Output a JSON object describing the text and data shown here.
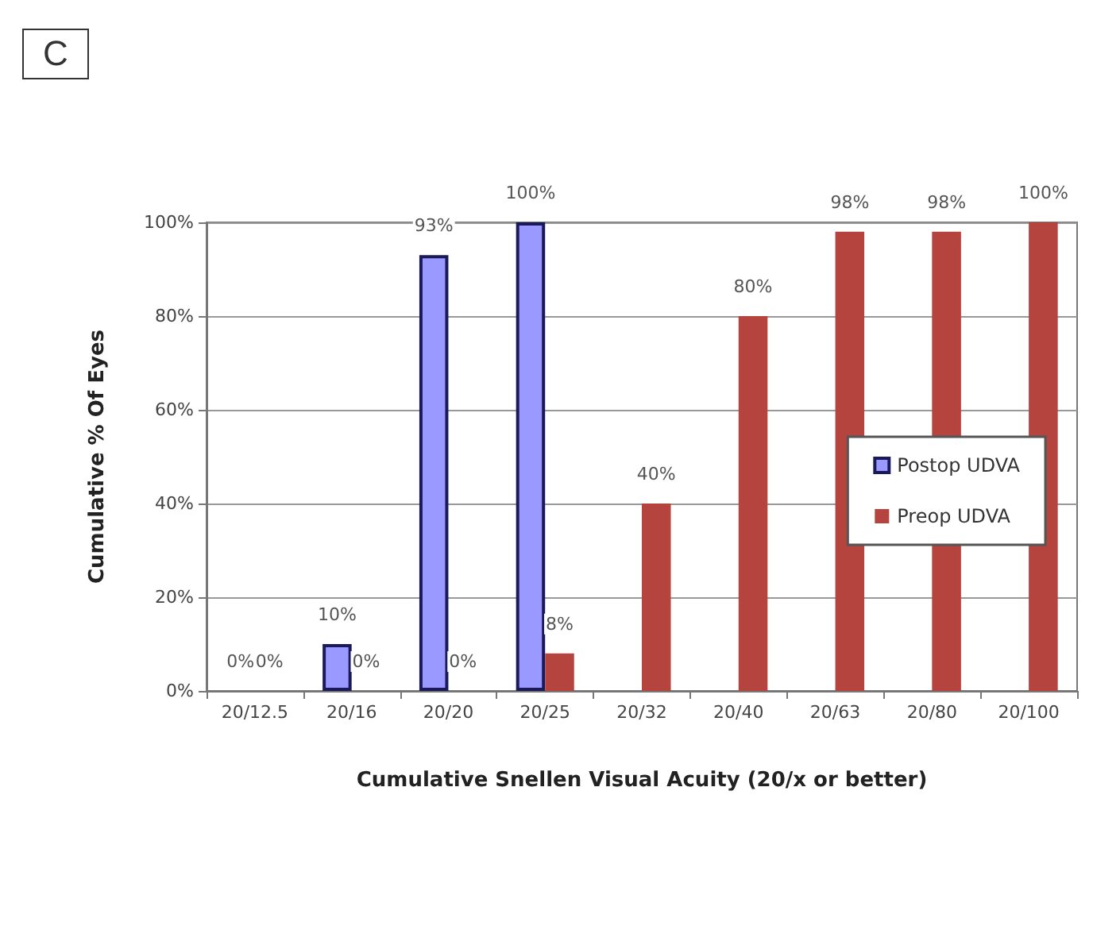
{
  "chart_data": {
    "type": "bar",
    "annotations": [
      "C"
    ],
    "xlabel": "Cumulative Snellen Visual Acuity (20/x or better)",
    "ylabel": "Cumulative % Of Eyes",
    "categories": [
      "20/12.5",
      "20/16",
      "20/20",
      "20/25",
      "20/32",
      "20/40",
      "20/63",
      "20/80",
      "20/100"
    ],
    "series": [
      {
        "name": "Postop UDVA",
        "color": "#9999ff",
        "values": [
          0,
          10,
          93,
          100,
          null,
          null,
          null,
          null,
          null
        ],
        "value_labels": [
          "0%",
          "10%",
          "93%",
          "100%",
          null,
          null,
          null,
          null,
          null
        ]
      },
      {
        "name": "Preop UDVA",
        "color": "#b5443f",
        "values": [
          0,
          0,
          0,
          8,
          40,
          80,
          98,
          98,
          100
        ],
        "value_labels": [
          "0%",
          "0%",
          "0%",
          "8%",
          "40%",
          "80%",
          "98%",
          "98%",
          "100%"
        ]
      }
    ],
    "ylim": [
      0,
      100
    ],
    "yticks": [
      {
        "value": 0,
        "label": "0%"
      },
      {
        "value": 20,
        "label": "20%"
      },
      {
        "value": 40,
        "label": "40%"
      },
      {
        "value": 60,
        "label": "60%"
      },
      {
        "value": 80,
        "label": "80%"
      },
      {
        "value": 100,
        "label": "100%"
      }
    ],
    "grid": "y",
    "legend": "right"
  }
}
